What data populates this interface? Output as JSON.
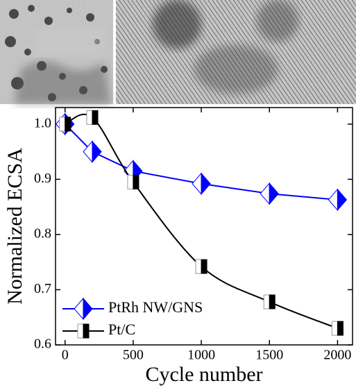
{
  "chart_data": {
    "type": "line",
    "x_label": "Cycle number",
    "y_label": "Normalized ECSA",
    "xlim": [
      -70,
      2110
    ],
    "ylim": [
      0.6,
      1.03
    ],
    "xticks": [
      0,
      500,
      1000,
      1500,
      2000
    ],
    "yticks": [
      0.6,
      0.7,
      0.8,
      0.9,
      {
        "value": 1,
        "label": "1.0"
      }
    ],
    "legend": "lower left",
    "series": [
      {
        "name": "PtRh NW/GNS",
        "color": "#0000ff",
        "marker": "diamond",
        "smooth": false,
        "x": [
          0,
          200,
          500,
          1000,
          1500,
          2000
        ],
        "values": [
          1.0,
          0.95,
          0.915,
          0.892,
          0.874,
          0.863
        ]
      },
      {
        "name": "Pt/C",
        "color": "#000000",
        "marker": "square",
        "smooth": true,
        "x": [
          0,
          200,
          500,
          1000,
          1500,
          2000
        ],
        "values": [
          1.0,
          1.012,
          0.895,
          0.742,
          0.678,
          0.63
        ]
      }
    ]
  }
}
